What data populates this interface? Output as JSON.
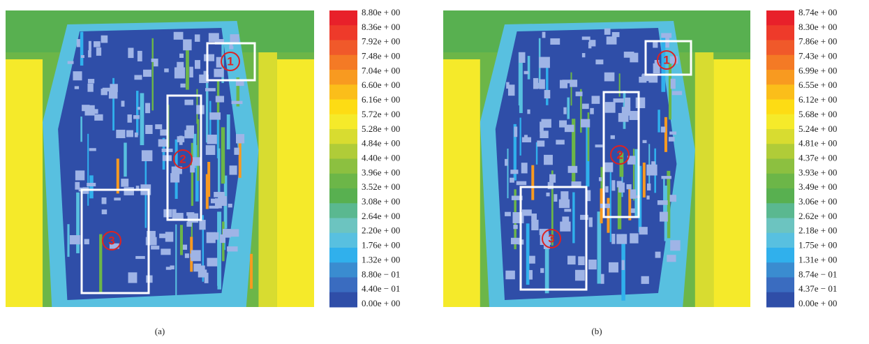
{
  "panels": [
    {
      "caption": "(a)",
      "scale_labels": [
        "8.80e + 00",
        "8.36e + 00",
        "7.92e + 00",
        "7.48e + 00",
        "7.04e + 00",
        "6.60e + 00",
        "6.16e + 00",
        "5.72e + 00",
        "5.28e + 00",
        "4.84e + 00",
        "4.40e + 00",
        "3.96e + 00",
        "3.52e + 00",
        "3.08e + 00",
        "2.64e + 00",
        "2.20e + 00",
        "1.76e + 00",
        "1.32e + 00",
        "8.80e − 01",
        "4.40e − 01",
        "0.00e + 00"
      ],
      "regions": [
        {
          "label": "1"
        },
        {
          "label": "2"
        },
        {
          "label": "3"
        }
      ]
    },
    {
      "caption": "(b)",
      "scale_labels": [
        "8.74e + 00",
        "8.30e + 00",
        "7.86e + 00",
        "7.43e + 00",
        "6.99e + 00",
        "6.55e + 00",
        "6.12e + 00",
        "5.68e + 00",
        "5.24e + 00",
        "4.81e + 00",
        "4.37e + 00",
        "3.93e + 00",
        "3.49e + 00",
        "3.06e + 00",
        "2.62e + 00",
        "2.18e + 00",
        "1.75e + 00",
        "1.31e + 00",
        "8.74e − 01",
        "4.37e − 01",
        "0.00e + 00"
      ],
      "regions": [
        {
          "label": "1"
        },
        {
          "label": "2"
        },
        {
          "label": "3"
        }
      ]
    }
  ]
}
